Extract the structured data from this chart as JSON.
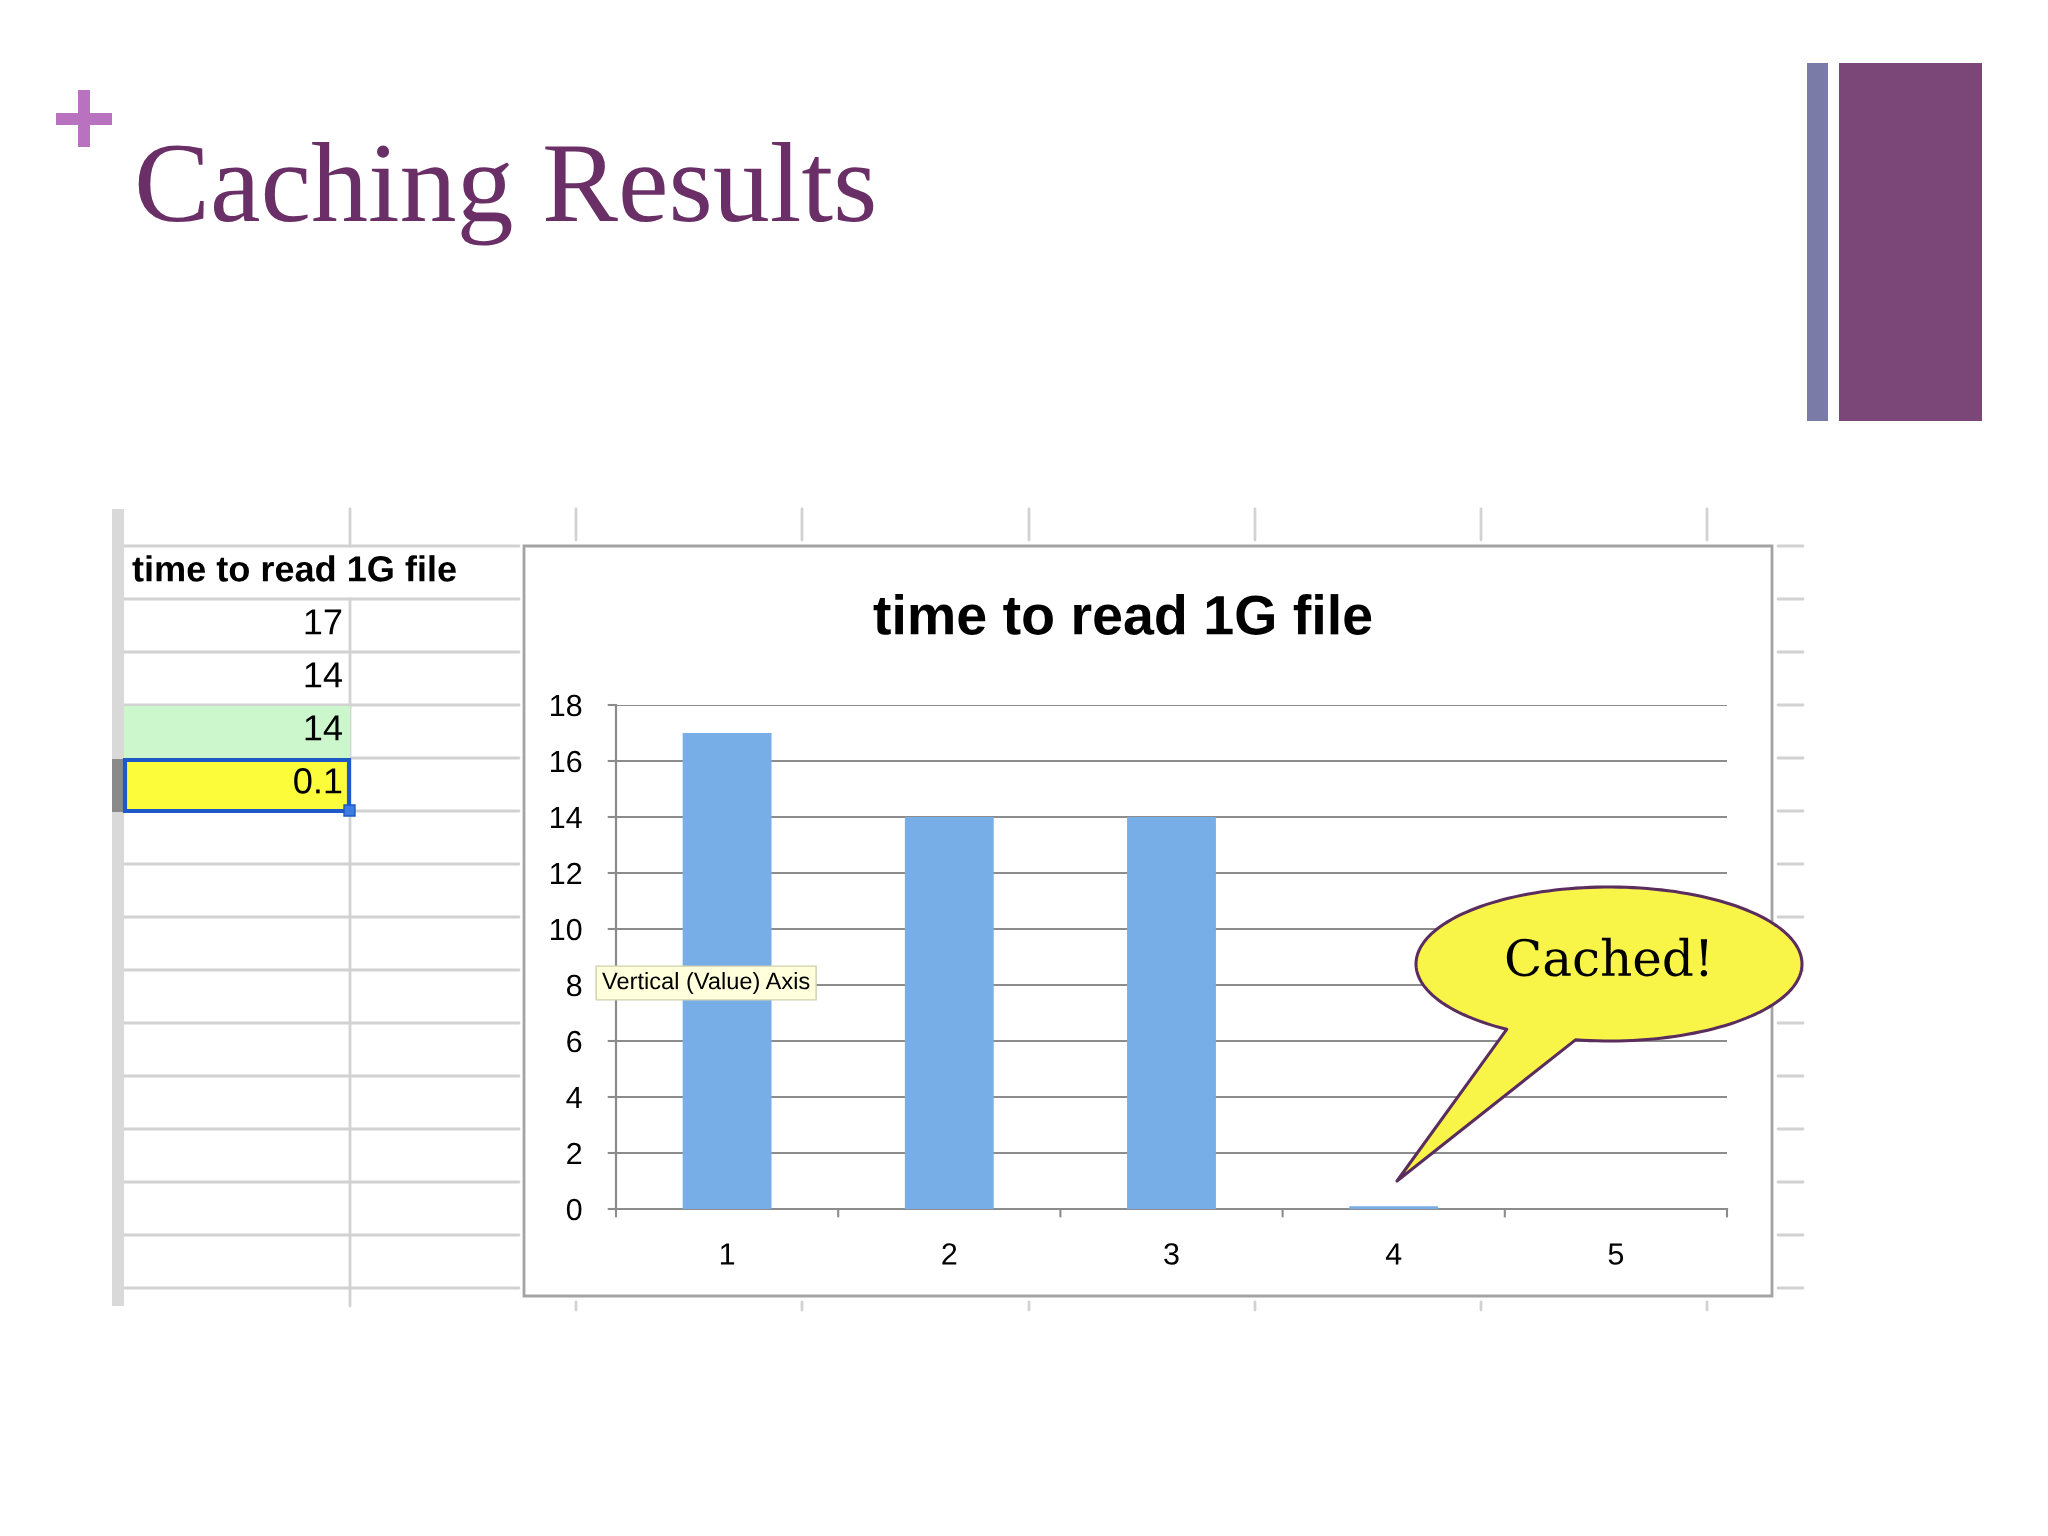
{
  "chart_data": [
    {
      "type": "other",
      "title": "time to read 1G file",
      "annotations": [
        "17",
        "14",
        "14",
        "0.1"
      ]
    },
    {
      "type": "bar",
      "title": "Caching Results",
      "subtitle": "time to read 1G file",
      "categories": [
        "1",
        "2",
        "3",
        "4",
        "5"
      ],
      "values": [
        17,
        14,
        14,
        0.1,
        null
      ],
      "color": "#78aee8",
      "ylim": [
        0,
        18
      ],
      "yticks": [
        0,
        2,
        4,
        6,
        8,
        10,
        12,
        14,
        16,
        18
      ],
      "grid": "y",
      "annotations": [
        "Vertical (Value) Axis",
        "Cached!"
      ]
    }
  ]
}
